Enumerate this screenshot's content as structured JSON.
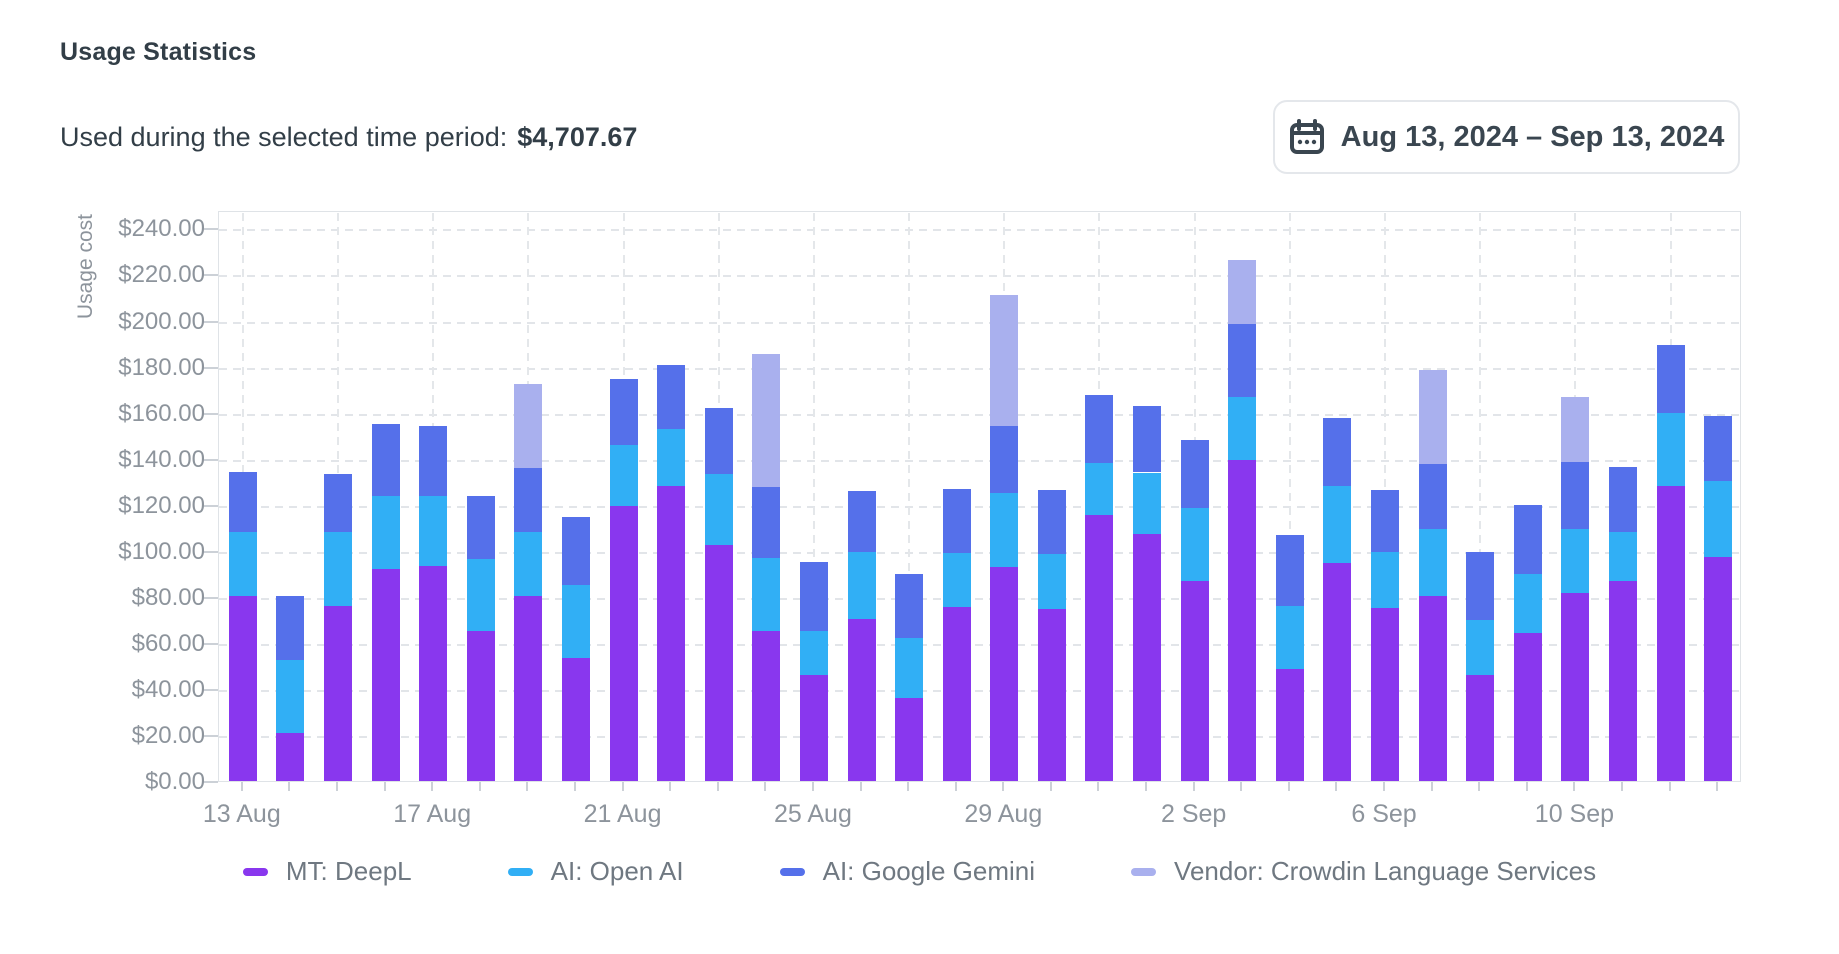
{
  "header": {
    "title": "Usage Statistics",
    "subtitle_label": "Used during the selected time period:",
    "subtitle_value": "$4,707.67",
    "date_range": "Aug 13, 2024 – Sep 13, 2024"
  },
  "colors": {
    "deepl_purple": "#8937EE",
    "openai_cyan": "#31AFF5",
    "gemini_blue": "#5570EA",
    "vendor_lavender": "#A9B0EE",
    "dark_text": "#323e47",
    "axis_text": "#8d949c",
    "legend_text": "#6f7881"
  },
  "chart_data": {
    "type": "bar",
    "stacked": true,
    "ylabel": "Usage cost",
    "xlabel": "",
    "ylim": [
      0,
      248
    ],
    "y_tick_step": 20,
    "y_tick_labels": [
      "$0.00",
      "$20.00",
      "$40.00",
      "$60.00",
      "$80.00",
      "$100.00",
      "$120.00",
      "$140.00",
      "$160.00",
      "$180.00",
      "$200.00",
      "$220.00",
      "$240.00"
    ],
    "grid": "dashed",
    "legend_position": "bottom",
    "categories": [
      "13 Aug",
      "14 Aug",
      "15 Aug",
      "16 Aug",
      "17 Aug",
      "18 Aug",
      "19 Aug",
      "20 Aug",
      "21 Aug",
      "22 Aug",
      "23 Aug",
      "24 Aug",
      "25 Aug",
      "26 Aug",
      "27 Aug",
      "28 Aug",
      "29 Aug",
      "30 Aug",
      "31 Aug",
      "1 Sep",
      "2 Sep",
      "3 Sep",
      "4 Sep",
      "5 Sep",
      "6 Sep",
      "7 Sep",
      "8 Sep",
      "9 Sep",
      "10 Sep",
      "11 Sep",
      "12 Sep",
      "13 Sep"
    ],
    "x_axis_labels": [
      "13 Aug",
      "17 Aug",
      "21 Aug",
      "25 Aug",
      "29 Aug",
      "2 Sep",
      "6 Sep",
      "10 Sep"
    ],
    "x_axis_label_indices": [
      0,
      4,
      8,
      12,
      16,
      20,
      24,
      28
    ],
    "series": [
      {
        "name": "MT: DeepL",
        "color": "#8937EE",
        "values": [
          80.5,
          21,
          76,
          92,
          93.5,
          65,
          80.5,
          53.5,
          119.5,
          128,
          102.5,
          65,
          46,
          70.5,
          36,
          75.5,
          93,
          74.5,
          115.5,
          107.5,
          87,
          139.5,
          48.5,
          94.5,
          75,
          80.5,
          46,
          64.5,
          81.5,
          87,
          128,
          97.5
        ]
      },
      {
        "name": "AI: Open AI",
        "color": "#31AFF5",
        "values": [
          27.5,
          31.5,
          32,
          32,
          30.5,
          31.5,
          27.5,
          31.5,
          26.5,
          25,
          31,
          32,
          19,
          29,
          26,
          23.5,
          32,
          24,
          22.5,
          26.5,
          31.5,
          27.5,
          27.5,
          33.5,
          24.5,
          29,
          24,
          25.5,
          28,
          21,
          32,
          33
        ]
      },
      {
        "name": "AI: Google Gemini",
        "color": "#5570EA",
        "values": [
          26,
          28,
          25.5,
          31,
          30,
          27.5,
          28,
          29.5,
          28.5,
          27.5,
          28.5,
          30.5,
          30,
          26.5,
          28,
          28,
          29,
          28,
          29.5,
          29,
          29.5,
          31.5,
          31,
          29.5,
          27,
          28,
          29.5,
          30,
          29,
          28.5,
          29.5,
          28
        ]
      },
      {
        "name": "Vendor: Crowdin Language Services",
        "color": "#A9B0EE",
        "values": [
          0,
          0,
          0,
          0,
          0,
          0,
          36.5,
          0,
          0,
          0,
          0,
          58,
          0,
          0,
          0,
          0,
          57,
          0,
          0,
          0,
          0,
          28,
          0,
          0,
          0,
          41,
          0,
          0,
          28.5,
          0,
          0,
          0
        ]
      }
    ]
  }
}
